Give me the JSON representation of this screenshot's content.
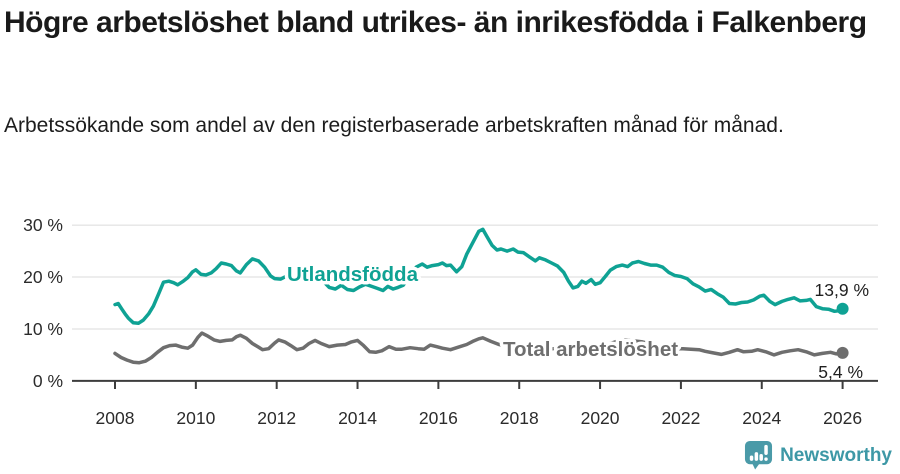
{
  "header": {
    "title": "Högre arbetslöshet bland utrikes- än inrikesfödda i Falkenberg",
    "subtitle": "Arbetssökande som andel av den registerbaserade arbetskraften månad för månad."
  },
  "footer": {
    "brand": "Newsworthy",
    "logo_icon": "bar-chart-speech-bubble-icon",
    "brand_color": "#3d98a6",
    "logo_fill": "#4a9aa8"
  },
  "chart_data": {
    "type": "line",
    "unit": "%",
    "xlabel": "",
    "ylabel": "",
    "xlim": [
      2008,
      2026
    ],
    "ylim": [
      0,
      30
    ],
    "grid": true,
    "axis_color": "#3d3d3d",
    "gridline_color": "#dbdbdb",
    "x_ticks": [
      {
        "value": 2008,
        "label": "2008"
      },
      {
        "value": 2010,
        "label": "2010"
      },
      {
        "value": 2012,
        "label": "2012"
      },
      {
        "value": 2014,
        "label": "2014"
      },
      {
        "value": 2016,
        "label": "2016"
      },
      {
        "value": 2018,
        "label": "2018"
      },
      {
        "value": 2020,
        "label": "2020"
      },
      {
        "value": 2022,
        "label": "2022"
      },
      {
        "value": 2024,
        "label": "2024"
      },
      {
        "value": 2026,
        "label": "2026"
      }
    ],
    "y_ticks": [
      {
        "value": 0,
        "label": "0 %"
      },
      {
        "value": 10,
        "label": "10 %"
      },
      {
        "value": 20,
        "label": "20 %"
      },
      {
        "value": 30,
        "label": "30 %"
      }
    ],
    "series": [
      {
        "name": "Utlandsfödda",
        "color": "#0fa294",
        "end_value": 13.9,
        "end_label": "13,9 %",
        "points": [
          [
            2008.0,
            14.7
          ],
          [
            2008.08,
            14.9
          ],
          [
            2008.17,
            13.8
          ],
          [
            2008.25,
            12.9
          ],
          [
            2008.33,
            12.1
          ],
          [
            2008.45,
            11.2
          ],
          [
            2008.58,
            11.1
          ],
          [
            2008.7,
            11.7
          ],
          [
            2008.83,
            12.9
          ],
          [
            2008.95,
            14.4
          ],
          [
            2009.08,
            16.8
          ],
          [
            2009.2,
            19.0
          ],
          [
            2009.33,
            19.2
          ],
          [
            2009.45,
            18.9
          ],
          [
            2009.55,
            18.5
          ],
          [
            2009.67,
            19.1
          ],
          [
            2009.8,
            19.9
          ],
          [
            2009.92,
            21.0
          ],
          [
            2010.0,
            21.4
          ],
          [
            2010.13,
            20.5
          ],
          [
            2010.25,
            20.4
          ],
          [
            2010.38,
            20.8
          ],
          [
            2010.5,
            21.6
          ],
          [
            2010.63,
            22.7
          ],
          [
            2010.75,
            22.5
          ],
          [
            2010.88,
            22.2
          ],
          [
            2011.0,
            21.2
          ],
          [
            2011.1,
            20.8
          ],
          [
            2011.25,
            22.4
          ],
          [
            2011.4,
            23.5
          ],
          [
            2011.55,
            23.1
          ],
          [
            2011.7,
            21.9
          ],
          [
            2011.85,
            20.2
          ],
          [
            2011.95,
            19.7
          ],
          [
            2012.1,
            19.6
          ],
          [
            2012.25,
            20.2
          ],
          [
            2012.4,
            19.9
          ],
          [
            2012.55,
            20.8
          ],
          [
            2012.7,
            21.9
          ],
          [
            2012.85,
            21.7
          ],
          [
            2013.0,
            20.6
          ],
          [
            2013.15,
            19.2
          ],
          [
            2013.3,
            18.0
          ],
          [
            2013.45,
            17.7
          ],
          [
            2013.6,
            18.4
          ],
          [
            2013.75,
            17.6
          ],
          [
            2013.9,
            17.4
          ],
          [
            2014.05,
            18.1
          ],
          [
            2014.2,
            18.6
          ],
          [
            2014.35,
            18.2
          ],
          [
            2014.5,
            17.8
          ],
          [
            2014.63,
            17.4
          ],
          [
            2014.75,
            18.2
          ],
          [
            2014.88,
            17.7
          ],
          [
            2015.0,
            18.0
          ],
          [
            2015.13,
            18.4
          ],
          [
            2015.3,
            20.3
          ],
          [
            2015.45,
            21.9
          ],
          [
            2015.6,
            22.5
          ],
          [
            2015.72,
            21.9
          ],
          [
            2015.85,
            22.2
          ],
          [
            2016.0,
            22.4
          ],
          [
            2016.1,
            22.7
          ],
          [
            2016.2,
            22.2
          ],
          [
            2016.3,
            22.3
          ],
          [
            2016.45,
            21.0
          ],
          [
            2016.58,
            22.0
          ],
          [
            2016.7,
            24.4
          ],
          [
            2016.85,
            26.6
          ],
          [
            2017.0,
            28.8
          ],
          [
            2017.1,
            29.2
          ],
          [
            2017.2,
            27.8
          ],
          [
            2017.33,
            26.1
          ],
          [
            2017.45,
            25.2
          ],
          [
            2017.55,
            25.4
          ],
          [
            2017.7,
            25.0
          ],
          [
            2017.85,
            25.4
          ],
          [
            2017.97,
            24.8
          ],
          [
            2018.1,
            24.7
          ],
          [
            2018.25,
            23.9
          ],
          [
            2018.4,
            23.1
          ],
          [
            2018.5,
            23.7
          ],
          [
            2018.65,
            23.3
          ],
          [
            2018.8,
            22.7
          ],
          [
            2018.95,
            22.1
          ],
          [
            2019.1,
            20.9
          ],
          [
            2019.22,
            19.2
          ],
          [
            2019.33,
            17.9
          ],
          [
            2019.45,
            18.2
          ],
          [
            2019.55,
            19.2
          ],
          [
            2019.65,
            18.8
          ],
          [
            2019.78,
            19.5
          ],
          [
            2019.88,
            18.6
          ],
          [
            2020.0,
            18.9
          ],
          [
            2020.13,
            20.1
          ],
          [
            2020.25,
            21.3
          ],
          [
            2020.4,
            22.0
          ],
          [
            2020.55,
            22.3
          ],
          [
            2020.68,
            22.0
          ],
          [
            2020.8,
            22.7
          ],
          [
            2020.95,
            23.0
          ],
          [
            2021.1,
            22.6
          ],
          [
            2021.25,
            22.3
          ],
          [
            2021.4,
            22.3
          ],
          [
            2021.55,
            21.9
          ],
          [
            2021.7,
            20.9
          ],
          [
            2021.85,
            20.3
          ],
          [
            2022.0,
            20.1
          ],
          [
            2022.15,
            19.7
          ],
          [
            2022.3,
            18.7
          ],
          [
            2022.45,
            18.1
          ],
          [
            2022.6,
            17.3
          ],
          [
            2022.75,
            17.6
          ],
          [
            2022.9,
            16.8
          ],
          [
            2023.05,
            16.1
          ],
          [
            2023.2,
            14.9
          ],
          [
            2023.35,
            14.8
          ],
          [
            2023.5,
            15.1
          ],
          [
            2023.65,
            15.2
          ],
          [
            2023.8,
            15.6
          ],
          [
            2023.95,
            16.3
          ],
          [
            2024.05,
            16.5
          ],
          [
            2024.2,
            15.3
          ],
          [
            2024.33,
            14.7
          ],
          [
            2024.5,
            15.3
          ],
          [
            2024.65,
            15.7
          ],
          [
            2024.8,
            16.0
          ],
          [
            2024.95,
            15.4
          ],
          [
            2025.1,
            15.5
          ],
          [
            2025.2,
            15.7
          ],
          [
            2025.35,
            14.3
          ],
          [
            2025.5,
            13.9
          ],
          [
            2025.65,
            13.8
          ],
          [
            2025.8,
            13.4
          ],
          [
            2025.9,
            13.5
          ],
          [
            2026.0,
            13.9
          ]
        ]
      },
      {
        "name": "Total arbetslöshet",
        "color": "#6e6e6e",
        "end_value": 5.4,
        "end_label": "5,4 %",
        "points": [
          [
            2008.0,
            5.3
          ],
          [
            2008.15,
            4.5
          ],
          [
            2008.3,
            4.0
          ],
          [
            2008.45,
            3.6
          ],
          [
            2008.6,
            3.5
          ],
          [
            2008.75,
            3.8
          ],
          [
            2008.9,
            4.5
          ],
          [
            2009.05,
            5.5
          ],
          [
            2009.2,
            6.4
          ],
          [
            2009.35,
            6.8
          ],
          [
            2009.5,
            6.9
          ],
          [
            2009.65,
            6.5
          ],
          [
            2009.8,
            6.3
          ],
          [
            2009.92,
            6.9
          ],
          [
            2010.05,
            8.4
          ],
          [
            2010.15,
            9.2
          ],
          [
            2010.3,
            8.6
          ],
          [
            2010.45,
            7.9
          ],
          [
            2010.6,
            7.6
          ],
          [
            2010.75,
            7.8
          ],
          [
            2010.9,
            7.9
          ],
          [
            2011.0,
            8.5
          ],
          [
            2011.1,
            8.8
          ],
          [
            2011.25,
            8.2
          ],
          [
            2011.4,
            7.2
          ],
          [
            2011.55,
            6.5
          ],
          [
            2011.65,
            6.0
          ],
          [
            2011.8,
            6.2
          ],
          [
            2011.95,
            7.3
          ],
          [
            2012.05,
            7.9
          ],
          [
            2012.2,
            7.5
          ],
          [
            2012.35,
            6.8
          ],
          [
            2012.5,
            6.0
          ],
          [
            2012.65,
            6.3
          ],
          [
            2012.8,
            7.2
          ],
          [
            2012.95,
            7.8
          ],
          [
            2013.1,
            7.2
          ],
          [
            2013.3,
            6.6
          ],
          [
            2013.5,
            6.9
          ],
          [
            2013.7,
            7.0
          ],
          [
            2013.85,
            7.5
          ],
          [
            2014.0,
            7.8
          ],
          [
            2014.15,
            6.8
          ],
          [
            2014.3,
            5.6
          ],
          [
            2014.45,
            5.5
          ],
          [
            2014.6,
            5.8
          ],
          [
            2014.78,
            6.6
          ],
          [
            2014.95,
            6.1
          ],
          [
            2015.1,
            6.1
          ],
          [
            2015.3,
            6.4
          ],
          [
            2015.5,
            6.2
          ],
          [
            2015.65,
            6.1
          ],
          [
            2015.8,
            6.9
          ],
          [
            2015.95,
            6.6
          ],
          [
            2016.1,
            6.3
          ],
          [
            2016.3,
            6.0
          ],
          [
            2016.5,
            6.5
          ],
          [
            2016.7,
            7.0
          ],
          [
            2016.85,
            7.6
          ],
          [
            2017.0,
            8.1
          ],
          [
            2017.1,
            8.3
          ],
          [
            2017.3,
            7.6
          ],
          [
            2017.5,
            7.0
          ],
          [
            2017.7,
            6.7
          ],
          [
            2017.9,
            6.9
          ],
          [
            2018.05,
            7.1
          ],
          [
            2018.25,
            6.5
          ],
          [
            2018.45,
            6.1
          ],
          [
            2018.65,
            6.0
          ],
          [
            2018.85,
            6.2
          ],
          [
            2019.05,
            6.3
          ],
          [
            2019.25,
            5.9
          ],
          [
            2019.45,
            5.7
          ],
          [
            2019.65,
            5.6
          ],
          [
            2019.85,
            6.0
          ],
          [
            2020.05,
            6.4
          ],
          [
            2020.25,
            7.2
          ],
          [
            2020.45,
            7.7
          ],
          [
            2020.65,
            7.9
          ],
          [
            2020.85,
            7.7
          ],
          [
            2021.05,
            7.5
          ],
          [
            2021.25,
            7.1
          ],
          [
            2021.45,
            6.8
          ],
          [
            2021.65,
            6.4
          ],
          [
            2021.85,
            6.2
          ],
          [
            2022.05,
            6.2
          ],
          [
            2022.25,
            6.1
          ],
          [
            2022.45,
            6.0
          ],
          [
            2022.6,
            5.7
          ],
          [
            2022.8,
            5.4
          ],
          [
            2023.0,
            5.1
          ],
          [
            2023.2,
            5.5
          ],
          [
            2023.4,
            6.0
          ],
          [
            2023.55,
            5.6
          ],
          [
            2023.75,
            5.7
          ],
          [
            2023.9,
            6.0
          ],
          [
            2024.1,
            5.6
          ],
          [
            2024.3,
            5.0
          ],
          [
            2024.5,
            5.5
          ],
          [
            2024.7,
            5.8
          ],
          [
            2024.9,
            6.0
          ],
          [
            2025.1,
            5.6
          ],
          [
            2025.3,
            5.0
          ],
          [
            2025.5,
            5.3
          ],
          [
            2025.7,
            5.5
          ],
          [
            2025.85,
            5.2
          ],
          [
            2026.0,
            5.4
          ]
        ]
      }
    ]
  }
}
